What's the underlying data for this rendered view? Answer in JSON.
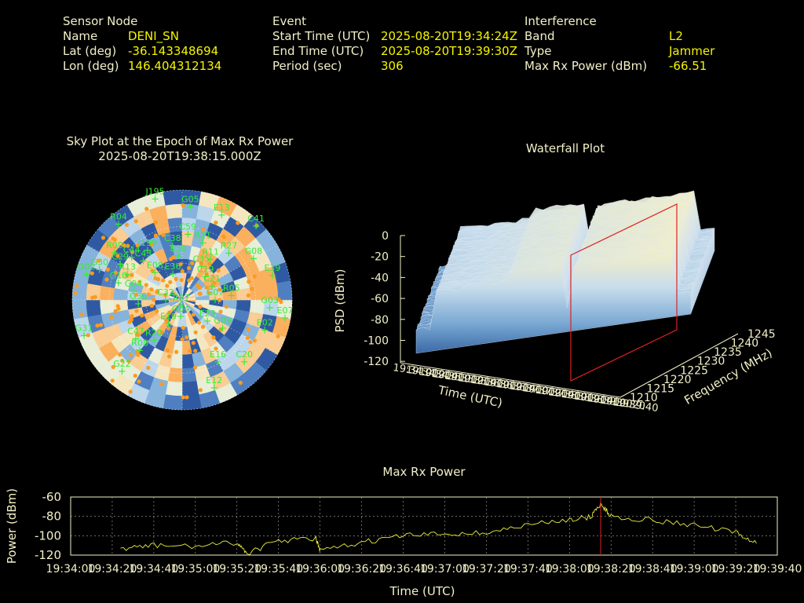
{
  "sensor": {
    "heading": "Sensor Node",
    "name_label": "Name",
    "name": "DENI_SN",
    "lat_label": "Lat (deg)",
    "lat": "-36.143348694",
    "lon_label": "Lon (deg)",
    "lon": "146.404312134"
  },
  "event": {
    "heading": "Event",
    "start_label": "Start Time (UTC)",
    "start": "2025-08-20T19:34:24Z",
    "end_label": "End Time (UTC)",
    "end": "2025-08-20T19:39:30Z",
    "period_label": "Period (sec)",
    "period": "306"
  },
  "interference": {
    "heading": "Interference",
    "band_label": "Band",
    "band": "L2",
    "type_label": "Type",
    "type": "Jammer",
    "power_label": "Max Rx Power (dBm)",
    "power": "-66.51"
  },
  "skyplot": {
    "title_line1": "Sky Plot at the Epoch of Max Rx Power",
    "title_line2": "2025-08-20T19:38:15.000Z",
    "satellites": [
      {
        "id": "J195",
        "az": -15,
        "r": 0.95
      },
      {
        "id": "G05",
        "az": 5,
        "r": 0.85
      },
      {
        "id": "E13",
        "az": 25,
        "r": 0.85
      },
      {
        "id": "C41",
        "az": 45,
        "r": 0.95
      },
      {
        "id": "R04",
        "az": -40,
        "r": 0.9
      },
      {
        "id": "R09",
        "az": -55,
        "r": 0.75
      },
      {
        "id": "J199",
        "az": -35,
        "r": 0.55
      },
      {
        "id": "C44",
        "az": -50,
        "r": 0.6
      },
      {
        "id": "C43",
        "az": -45,
        "r": 0.5
      },
      {
        "id": "C38",
        "az": -10,
        "r": 0.5
      },
      {
        "id": "E30",
        "az": -5,
        "r": 0.4
      },
      {
        "id": "C59",
        "az": 5,
        "r": 0.6
      },
      {
        "id": "R21",
        "az": 20,
        "r": 0.55
      },
      {
        "id": "R27",
        "az": 45,
        "r": 0.6
      },
      {
        "id": "G08",
        "az": 60,
        "r": 0.75
      },
      {
        "id": "R11",
        "az": 35,
        "r": 0.45
      },
      {
        "id": "C35",
        "az": 30,
        "r": 0.35
      },
      {
        "id": "C19",
        "az": 45,
        "r": 0.3
      },
      {
        "id": "C21",
        "az": 65,
        "r": 0.3
      },
      {
        "id": "E39",
        "az": 75,
        "r": 0.85
      },
      {
        "id": "G02",
        "az": -75,
        "r": 0.9
      },
      {
        "id": "G30",
        "az": -70,
        "r": 0.8
      },
      {
        "id": "C29",
        "az": -60,
        "r": 0.65
      },
      {
        "id": "E08",
        "az": -45,
        "r": 0.35
      },
      {
        "id": "E36",
        "az": -20,
        "r": 0.25
      },
      {
        "id": "R13",
        "az": -65,
        "r": 0.55
      },
      {
        "id": "G10",
        "az": -75,
        "r": 0.6
      },
      {
        "id": "G04",
        "az": -80,
        "r": 0.45
      },
      {
        "id": "G36",
        "az": -95,
        "r": 0.4
      },
      {
        "id": "C32",
        "az": -90,
        "r": 0.15
      },
      {
        "id": "R07",
        "az": -170,
        "r": 0.05
      },
      {
        "id": "G04b",
        "az": -175,
        "r": 0.15
      },
      {
        "id": "E19",
        "az": -150,
        "r": 0.25
      },
      {
        "id": "R05",
        "az": 85,
        "r": 0.45
      },
      {
        "id": "G07",
        "az": 90,
        "r": 0.3
      },
      {
        "id": "G03",
        "az": 95,
        "r": 0.8
      },
      {
        "id": "E23",
        "az": 130,
        "r": 0.3
      },
      {
        "id": "G09",
        "az": 125,
        "r": 0.45
      },
      {
        "id": "E02",
        "az": 110,
        "r": 0.8
      },
      {
        "id": "E07",
        "az": 100,
        "r": 0.95
      },
      {
        "id": "E16",
        "az": 150,
        "r": 0.65
      },
      {
        "id": "C20",
        "az": 135,
        "r": 0.8
      },
      {
        "id": "E12",
        "az": 160,
        "r": 0.85
      },
      {
        "id": "C47",
        "az": -130,
        "r": 0.55
      },
      {
        "id": "R20",
        "az": -145,
        "r": 0.45
      },
      {
        "id": "R08",
        "az": -140,
        "r": 0.6
      },
      {
        "id": "G31",
        "az": -110,
        "r": 0.95
      },
      {
        "id": "G22",
        "az": -140,
        "r": 0.85
      }
    ]
  },
  "waterfall": {
    "title": "Waterfall Plot",
    "zlabel": "PSD (dBm)",
    "xlabel": "Time (UTC)",
    "ylabel": "Frequency (MHz)",
    "z_ticks": [
      "0",
      "-20",
      "-40",
      "-60",
      "-80",
      "-100",
      "-120"
    ],
    "freq_ticks": [
      "1210",
      "1215",
      "1220",
      "1225",
      "1230",
      "1235",
      "1240",
      "1245"
    ],
    "time_ticks": [
      "19:34:00",
      "19:34:20",
      "19:34:40",
      "19:35:00",
      "19:35:20",
      "19:35:40",
      "19:36:00",
      "19:36:20",
      "19:36:40",
      "19:37:00",
      "19:37:20",
      "19:37:40",
      "19:38:00",
      "19:38:20",
      "19:38:40",
      "19:39:00",
      "19:39:20",
      "19:39:40"
    ]
  },
  "maxrx": {
    "title": "Max Rx Power",
    "ylabel": "Power (dBm)",
    "xlabel": "Time (UTC)",
    "y_ticks": [
      "-60",
      "-80",
      "-100",
      "-120"
    ],
    "x_ticks": [
      "19:34:00",
      "19:34:20",
      "19:34:40",
      "19:35:00",
      "19:35:20",
      "19:35:40",
      "19:36:00",
      "19:36:20",
      "19:36:40",
      "19:37:00",
      "19:37:20",
      "19:37:40",
      "19:38:00",
      "19:38:20",
      "19:38:40",
      "19:39:00",
      "19:39:20",
      "19:39:40"
    ]
  },
  "chart_data": [
    {
      "type": "scatter",
      "title": "Sky Plot at the Epoch of Max Rx Power",
      "subtitle": "2025-08-20T19:38:15.000Z",
      "grid": true
    },
    {
      "type": "heatmap",
      "title": "Waterfall Plot",
      "xlabel": "Time (UTC)",
      "ylabel": "Frequency (MHz)",
      "zlabel": "PSD (dBm)",
      "xlim": [
        "19:34:00",
        "19:39:40"
      ],
      "ylim": [
        1210,
        1245
      ],
      "zlim": [
        -120,
        0
      ],
      "marker_time": "19:38:15"
    },
    {
      "type": "line",
      "title": "Max Rx Power",
      "xlabel": "Time (UTC)",
      "ylabel": "Power (dBm)",
      "xlim": [
        "19:34:00",
        "19:39:40"
      ],
      "ylim": [
        -120,
        -60
      ],
      "grid": true,
      "marker_time": "19:38:15",
      "series": [
        {
          "x": [
            "19:34:24",
            "19:34:40",
            "19:35:00",
            "19:35:20",
            "19:35:25",
            "19:35:40",
            "19:35:58",
            "19:36:00",
            "19:36:20",
            "19:36:40",
            "19:37:00",
            "19:37:20",
            "19:37:40",
            "19:38:00",
            "19:38:10",
            "19:38:15",
            "19:38:20",
            "19:38:40",
            "19:39:00",
            "19:39:20",
            "19:39:30"
          ],
          "values": [
            -113,
            -110,
            -111,
            -107,
            -118,
            -105,
            -103,
            -116,
            -107,
            -100,
            -98,
            -97,
            -89,
            -83,
            -81,
            -67,
            -80,
            -84,
            -89,
            -97,
            -108
          ]
        }
      ]
    }
  ],
  "colors": {
    "text": "#f2f0c8",
    "value": "#f5f500",
    "sat": "#33ee33",
    "marker": "#dd2222",
    "trace": "#eeee44",
    "grid": "#aaaaaa"
  }
}
